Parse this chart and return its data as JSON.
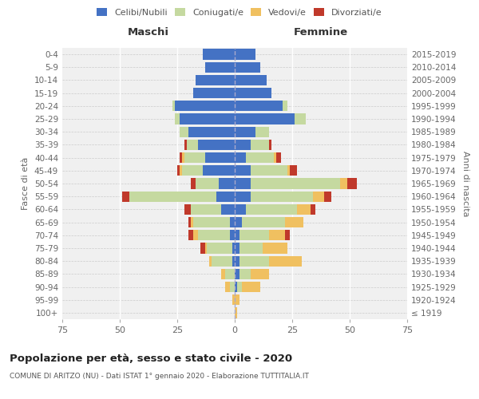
{
  "age_groups": [
    "100+",
    "95-99",
    "90-94",
    "85-89",
    "80-84",
    "75-79",
    "70-74",
    "65-69",
    "60-64",
    "55-59",
    "50-54",
    "45-49",
    "40-44",
    "35-39",
    "30-34",
    "25-29",
    "20-24",
    "15-19",
    "10-14",
    "5-9",
    "0-4"
  ],
  "birth_years": [
    "≤ 1919",
    "1920-1924",
    "1925-1929",
    "1930-1934",
    "1935-1939",
    "1940-1944",
    "1945-1949",
    "1950-1954",
    "1955-1959",
    "1960-1964",
    "1965-1969",
    "1970-1974",
    "1975-1979",
    "1980-1984",
    "1985-1989",
    "1990-1994",
    "1995-1999",
    "2000-2004",
    "2005-2009",
    "2010-2014",
    "2015-2019"
  ],
  "male_celibi": [
    0,
    0,
    0,
    0,
    1,
    1,
    2,
    2,
    6,
    8,
    7,
    14,
    13,
    16,
    20,
    24,
    26,
    18,
    17,
    13,
    14
  ],
  "male_coniugati": [
    0,
    0,
    2,
    4,
    9,
    11,
    14,
    16,
    13,
    38,
    10,
    9,
    9,
    5,
    4,
    2,
    1,
    0,
    0,
    0,
    0
  ],
  "male_vedovi": [
    0,
    1,
    2,
    2,
    1,
    1,
    2,
    1,
    0,
    0,
    0,
    1,
    1,
    0,
    0,
    0,
    0,
    0,
    0,
    0,
    0
  ],
  "male_divorziati": [
    0,
    0,
    0,
    0,
    0,
    2,
    2,
    1,
    3,
    3,
    2,
    1,
    1,
    1,
    0,
    0,
    0,
    0,
    0,
    0,
    0
  ],
  "female_celibi": [
    0,
    0,
    1,
    2,
    2,
    2,
    2,
    3,
    5,
    7,
    7,
    7,
    5,
    7,
    9,
    26,
    21,
    16,
    14,
    11,
    9
  ],
  "female_coniugati": [
    0,
    0,
    2,
    5,
    13,
    10,
    13,
    19,
    22,
    27,
    39,
    16,
    12,
    8,
    6,
    5,
    2,
    0,
    0,
    0,
    0
  ],
  "female_vedovi": [
    1,
    2,
    8,
    8,
    14,
    11,
    7,
    8,
    6,
    5,
    3,
    1,
    1,
    0,
    0,
    0,
    0,
    0,
    0,
    0,
    0
  ],
  "female_divorziati": [
    0,
    0,
    0,
    0,
    0,
    0,
    2,
    0,
    2,
    3,
    4,
    3,
    2,
    1,
    0,
    0,
    0,
    0,
    0,
    0,
    0
  ],
  "color_celibi": "#4472c4",
  "color_coniugati": "#c5d9a0",
  "color_vedovi": "#f0c060",
  "color_divorziati": "#c0392b",
  "title": "Popolazione per età, sesso e stato civile - 2020",
  "subtitle": "COMUNE DI ARITZO (NU) - Dati ISTAT 1° gennaio 2020 - Elaborazione TUTTITALIA.IT",
  "xlabel_left": "Maschi",
  "xlabel_right": "Femmine",
  "ylabel_left": "Fasce di età",
  "ylabel_right": "Anni di nascita",
  "xlim": 75,
  "bg_color": "#f0f0f0"
}
